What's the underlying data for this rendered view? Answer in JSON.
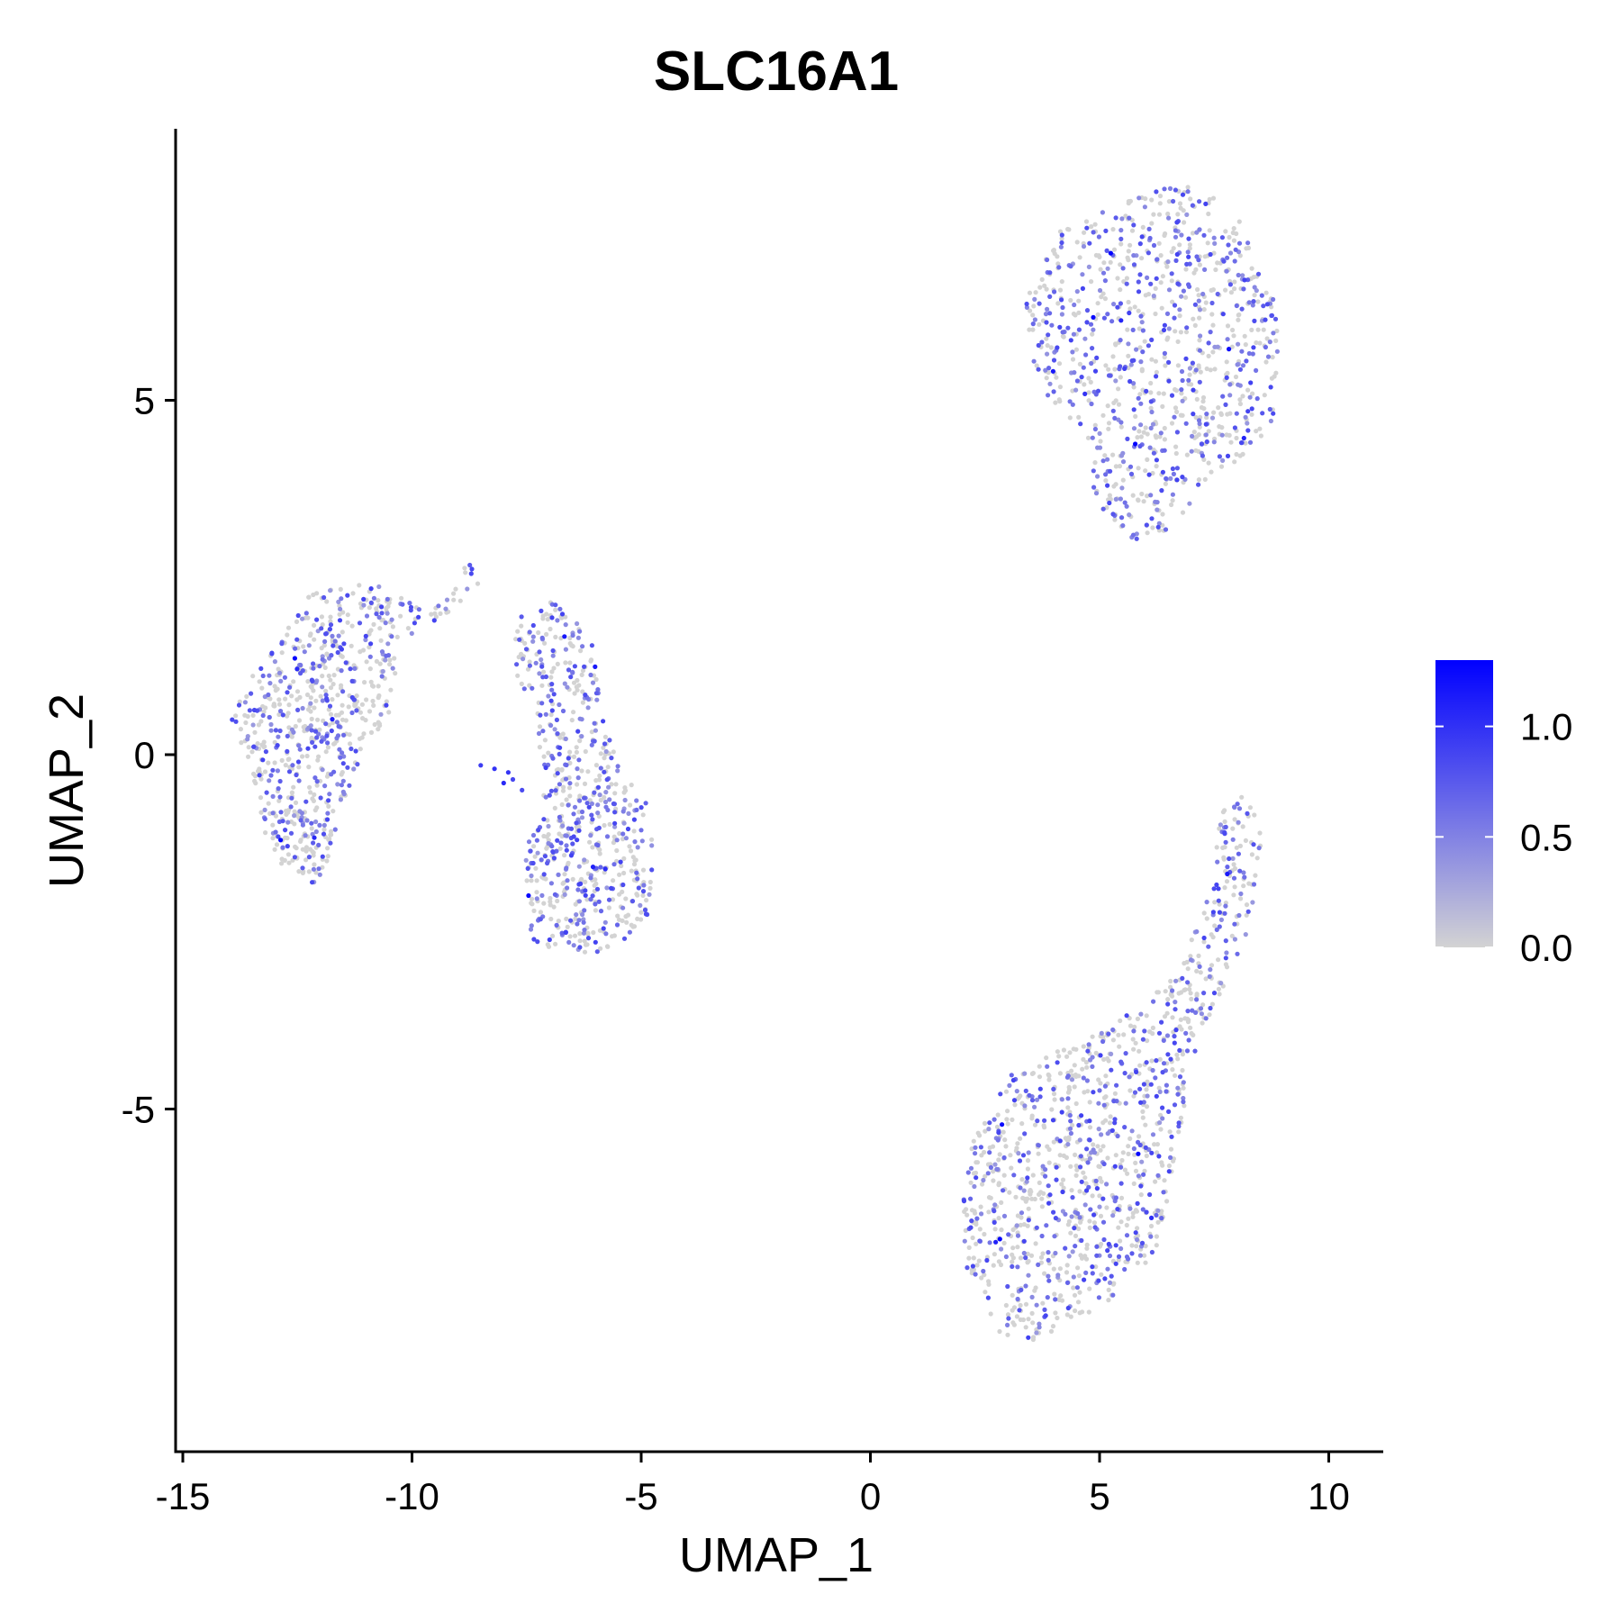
{
  "chart_data": {
    "type": "scatter",
    "title": "SLC16A1",
    "xlabel": "UMAP_1",
    "ylabel": "UMAP_2",
    "xlim": [
      -15.2,
      11.2
    ],
    "ylim": [
      -9.9,
      8.9
    ],
    "xticks": [
      {
        "value": -15,
        "label": "-15"
      },
      {
        "value": -10,
        "label": "-10"
      },
      {
        "value": -5,
        "label": "-5"
      },
      {
        "value": 0,
        "label": "0"
      },
      {
        "value": 5,
        "label": "5"
      },
      {
        "value": 10,
        "label": "10"
      }
    ],
    "yticks": [
      {
        "value": 5,
        "label": "5"
      },
      {
        "value": 0,
        "label": "0"
      },
      {
        "value": -5,
        "label": "-5"
      }
    ],
    "grid": false,
    "color_scale": {
      "low_color": "#d3d3d3",
      "high_color": "#0000ff",
      "min": 0.0,
      "max": 1.3,
      "ticks": [
        {
          "value": 0.0,
          "label": "0.0"
        },
        {
          "value": 0.5,
          "label": "0.5"
        },
        {
          "value": 1.0,
          "label": "1.0"
        }
      ],
      "legend_placement": "right"
    },
    "clusters": [
      {
        "description": "upper-right round cluster",
        "x_range": [
          3.2,
          9.0
        ],
        "y_range": [
          3.0,
          8.1
        ],
        "approx_points": 900,
        "expressing_fraction": 0.45
      },
      {
        "description": "lower-right elongated cluster",
        "x_range": [
          2.0,
          8.6
        ],
        "y_range": [
          -8.4,
          -0.4
        ],
        "approx_points": 1100,
        "expressing_fraction": 0.38
      },
      {
        "description": "left cluster",
        "x_range": [
          -14.0,
          -9.5
        ],
        "y_range": [
          -1.9,
          2.5
        ],
        "approx_points": 700,
        "expressing_fraction": 0.42
      },
      {
        "description": "center-left cluster",
        "x_range": [
          -7.8,
          -4.7
        ],
        "y_range": [
          -2.8,
          2.2
        ],
        "approx_points": 650,
        "expressing_fraction": 0.5
      }
    ]
  }
}
